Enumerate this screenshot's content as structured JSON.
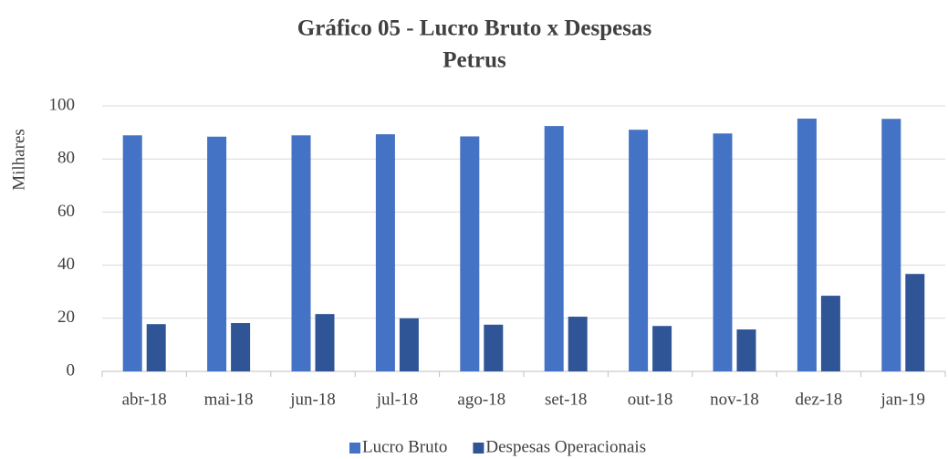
{
  "chart_data": {
    "type": "bar",
    "title": "Gráfico 05 - Lucro Bruto x Despesas",
    "subtitle": "Petrus",
    "y_label": "Milhares",
    "categories": [
      "abr-18",
      "mai-18",
      "jun-18",
      "jul-18",
      "ago-18",
      "set-18",
      "out-18",
      "nov-18",
      "dez-18",
      "jan-19"
    ],
    "series": [
      {
        "name": "Lucro Bruto",
        "color": "#4472c4",
        "values": [
          88.9,
          88.4,
          88.9,
          89.3,
          88.5,
          92.4,
          91.0,
          89.6,
          95.2,
          95.1
        ]
      },
      {
        "name": "Despesas Operacionais",
        "color": "#2f5597",
        "values": [
          17.8,
          18.2,
          21.6,
          20.0,
          17.6,
          20.6,
          17.1,
          15.8,
          28.5,
          36.7
        ]
      }
    ],
    "ylim": [
      0,
      100
    ],
    "yticks": [
      0,
      20,
      40,
      60,
      80,
      100
    ],
    "grid": true,
    "legend": "bottom"
  }
}
